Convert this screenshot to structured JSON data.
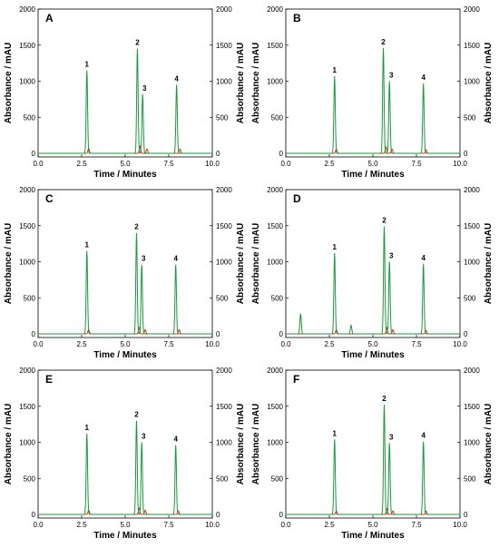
{
  "chart_data": [
    {
      "type": "line",
      "panel_label": "A",
      "xlabel": "Time / Minutes",
      "ylabel_left": "Absorbance / mAU",
      "ylabel_right": "Absorbance / mAU",
      "xlim": [
        0,
        10
      ],
      "ylim": [
        -50,
        2000
      ],
      "x_ticks": [
        "0.0",
        "2.5",
        "5.0",
        "7.5",
        "10.0"
      ],
      "y_ticks": [
        "0",
        "500",
        "1000",
        "1500",
        "2000"
      ],
      "series": [
        {
          "color": "#1a9a3a",
          "peaks": [
            [
              2.8,
              1150
            ],
            [
              5.7,
              1450
            ],
            [
              6.0,
              820
            ],
            [
              7.95,
              950
            ]
          ]
        },
        {
          "color": "#e03020",
          "peaks": [
            [
              2.9,
              70
            ],
            [
              5.85,
              100
            ],
            [
              6.25,
              60
            ],
            [
              8.15,
              60
            ]
          ]
        }
      ],
      "peak_labels": [
        {
          "label": "1",
          "x": 2.8,
          "y": 1150
        },
        {
          "label": "2",
          "x": 5.7,
          "y": 1450
        },
        {
          "label": "3",
          "x": 6.0,
          "y": 820
        },
        {
          "label": "4",
          "x": 7.95,
          "y": 950
        }
      ]
    },
    {
      "type": "line",
      "panel_label": "B",
      "xlabel": "Time / Minutes",
      "ylabel_left": "Absorbance / mAU",
      "ylabel_right": "Absorbance / mAU",
      "xlim": [
        0,
        10
      ],
      "ylim": [
        -50,
        2000
      ],
      "x_ticks": [
        "0.0",
        "2.5",
        "5.0",
        "7.5",
        "10.0"
      ],
      "y_ticks": [
        "0",
        "500",
        "1000",
        "1500",
        "2000"
      ],
      "series": [
        {
          "color": "#1a9a3a",
          "peaks": [
            [
              2.8,
              1070
            ],
            [
              5.6,
              1460
            ],
            [
              5.95,
              1000
            ],
            [
              7.9,
              970
            ]
          ]
        },
        {
          "color": "#e03020",
          "peaks": [
            [
              2.9,
              60
            ],
            [
              5.75,
              90
            ],
            [
              6.1,
              60
            ],
            [
              8.05,
              50
            ]
          ]
        }
      ],
      "peak_labels": [
        {
          "label": "1",
          "x": 2.8,
          "y": 1070
        },
        {
          "label": "2",
          "x": 5.6,
          "y": 1460
        },
        {
          "label": "3",
          "x": 5.95,
          "y": 1000
        },
        {
          "label": "4",
          "x": 7.9,
          "y": 970
        }
      ]
    },
    {
      "type": "line",
      "panel_label": "C",
      "xlabel": "Time / Minutes",
      "ylabel_left": "Absorbance / mAU",
      "ylabel_right": "Absorbance / mAU",
      "xlim": [
        0,
        10
      ],
      "ylim": [
        -50,
        2000
      ],
      "x_ticks": [
        "0.0",
        "2.5",
        "5.0",
        "7.5",
        "10.0"
      ],
      "y_ticks": [
        "0",
        "500",
        "1000",
        "1500",
        "2000"
      ],
      "series": [
        {
          "color": "#1a9a3a",
          "peaks": [
            [
              2.8,
              1150
            ],
            [
              5.65,
              1400
            ],
            [
              5.95,
              960
            ],
            [
              7.9,
              960
            ]
          ]
        },
        {
          "color": "#e03020",
          "peaks": [
            [
              2.9,
              60
            ],
            [
              5.8,
              90
            ],
            [
              6.15,
              60
            ],
            [
              8.1,
              60
            ]
          ]
        }
      ],
      "peak_labels": [
        {
          "label": "1",
          "x": 2.8,
          "y": 1150
        },
        {
          "label": "2",
          "x": 5.65,
          "y": 1400
        },
        {
          "label": "3",
          "x": 5.95,
          "y": 960
        },
        {
          "label": "4",
          "x": 7.9,
          "y": 960
        }
      ]
    },
    {
      "type": "line",
      "panel_label": "D",
      "xlabel": "Time / Minutes",
      "ylabel_left": "Absorbance / mAU",
      "ylabel_right": "Absorbance / mAU",
      "xlim": [
        0,
        10
      ],
      "ylim": [
        -50,
        2000
      ],
      "x_ticks": [
        "0.0",
        "2.5",
        "5.0",
        "7.5",
        "10.0"
      ],
      "y_ticks": [
        "0",
        "500",
        "1000",
        "1500",
        "2000"
      ],
      "series": [
        {
          "color": "#1a9a3a",
          "peaks": [
            [
              0.85,
              280
            ],
            [
              2.8,
              1120
            ],
            [
              3.75,
              120
            ],
            [
              5.65,
              1490
            ],
            [
              5.95,
              1000
            ],
            [
              7.9,
              970
            ]
          ]
        },
        {
          "color": "#e03020",
          "peaks": [
            [
              2.9,
              60
            ],
            [
              5.8,
              90
            ],
            [
              6.15,
              60
            ],
            [
              8.05,
              50
            ]
          ]
        }
      ],
      "peak_labels": [
        {
          "label": "1",
          "x": 2.8,
          "y": 1120
        },
        {
          "label": "2",
          "x": 5.65,
          "y": 1490
        },
        {
          "label": "3",
          "x": 5.95,
          "y": 1000
        },
        {
          "label": "4",
          "x": 7.9,
          "y": 970
        }
      ]
    },
    {
      "type": "line",
      "panel_label": "E",
      "xlabel": "Time / Minutes",
      "ylabel_left": "Absorbance / mAU",
      "ylabel_right": "Absorbance / mAU",
      "xlim": [
        0,
        10
      ],
      "ylim": [
        -50,
        2000
      ],
      "x_ticks": [
        "0.0",
        "2.5",
        "5.0",
        "7.5",
        "10.0"
      ],
      "y_ticks": [
        "0",
        "500",
        "1000",
        "1500",
        "2000"
      ],
      "series": [
        {
          "color": "#1a9a3a",
          "peaks": [
            [
              2.8,
              1120
            ],
            [
              5.65,
              1300
            ],
            [
              5.95,
              1000
            ],
            [
              7.9,
              960
            ]
          ]
        },
        {
          "color": "#e03020",
          "peaks": [
            [
              2.9,
              60
            ],
            [
              5.8,
              90
            ],
            [
              6.15,
              60
            ],
            [
              8.05,
              50
            ]
          ]
        }
      ],
      "peak_labels": [
        {
          "label": "1",
          "x": 2.8,
          "y": 1120
        },
        {
          "label": "2",
          "x": 5.65,
          "y": 1300
        },
        {
          "label": "3",
          "x": 5.95,
          "y": 1000
        },
        {
          "label": "4",
          "x": 7.9,
          "y": 960
        }
      ]
    },
    {
      "type": "line",
      "panel_label": "F",
      "xlabel": "Time / Minutes",
      "ylabel_left": "Absorbance / mAU",
      "ylabel_right": "Absorbance / mAU",
      "xlim": [
        0,
        10
      ],
      "ylim": [
        -50,
        2000
      ],
      "x_ticks": [
        "0.0",
        "2.5",
        "5.0",
        "7.5",
        "10.0"
      ],
      "y_ticks": [
        "0",
        "500",
        "1000",
        "1500",
        "2000"
      ],
      "series": [
        {
          "color": "#1a9a3a",
          "peaks": [
            [
              2.8,
              1040
            ],
            [
              5.65,
              1520
            ],
            [
              5.95,
              990
            ],
            [
              7.9,
              1010
            ]
          ]
        },
        {
          "color": "#e03020",
          "peaks": [
            [
              2.9,
              50
            ],
            [
              5.8,
              80
            ],
            [
              6.15,
              50
            ],
            [
              8.05,
              50
            ]
          ]
        }
      ],
      "peak_labels": [
        {
          "label": "1",
          "x": 2.8,
          "y": 1040
        },
        {
          "label": "2",
          "x": 5.65,
          "y": 1520
        },
        {
          "label": "3",
          "x": 5.95,
          "y": 990
        },
        {
          "label": "4",
          "x": 7.9,
          "y": 1010
        }
      ]
    }
  ]
}
